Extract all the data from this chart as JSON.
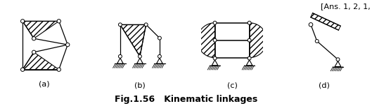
{
  "title": "Fig.1.56   Kinematic linkages",
  "title_fontsize": 9,
  "ans_text": "[Ans. 1, 2, 1,",
  "ans_fontsize": 8,
  "label_a": "(a)",
  "label_b": "(b)",
  "label_c": "(c)",
  "label_d": "(d)",
  "label_fontsize": 8,
  "hatch_pattern": "////",
  "line_color": "#000000",
  "bg_color": "#ffffff"
}
